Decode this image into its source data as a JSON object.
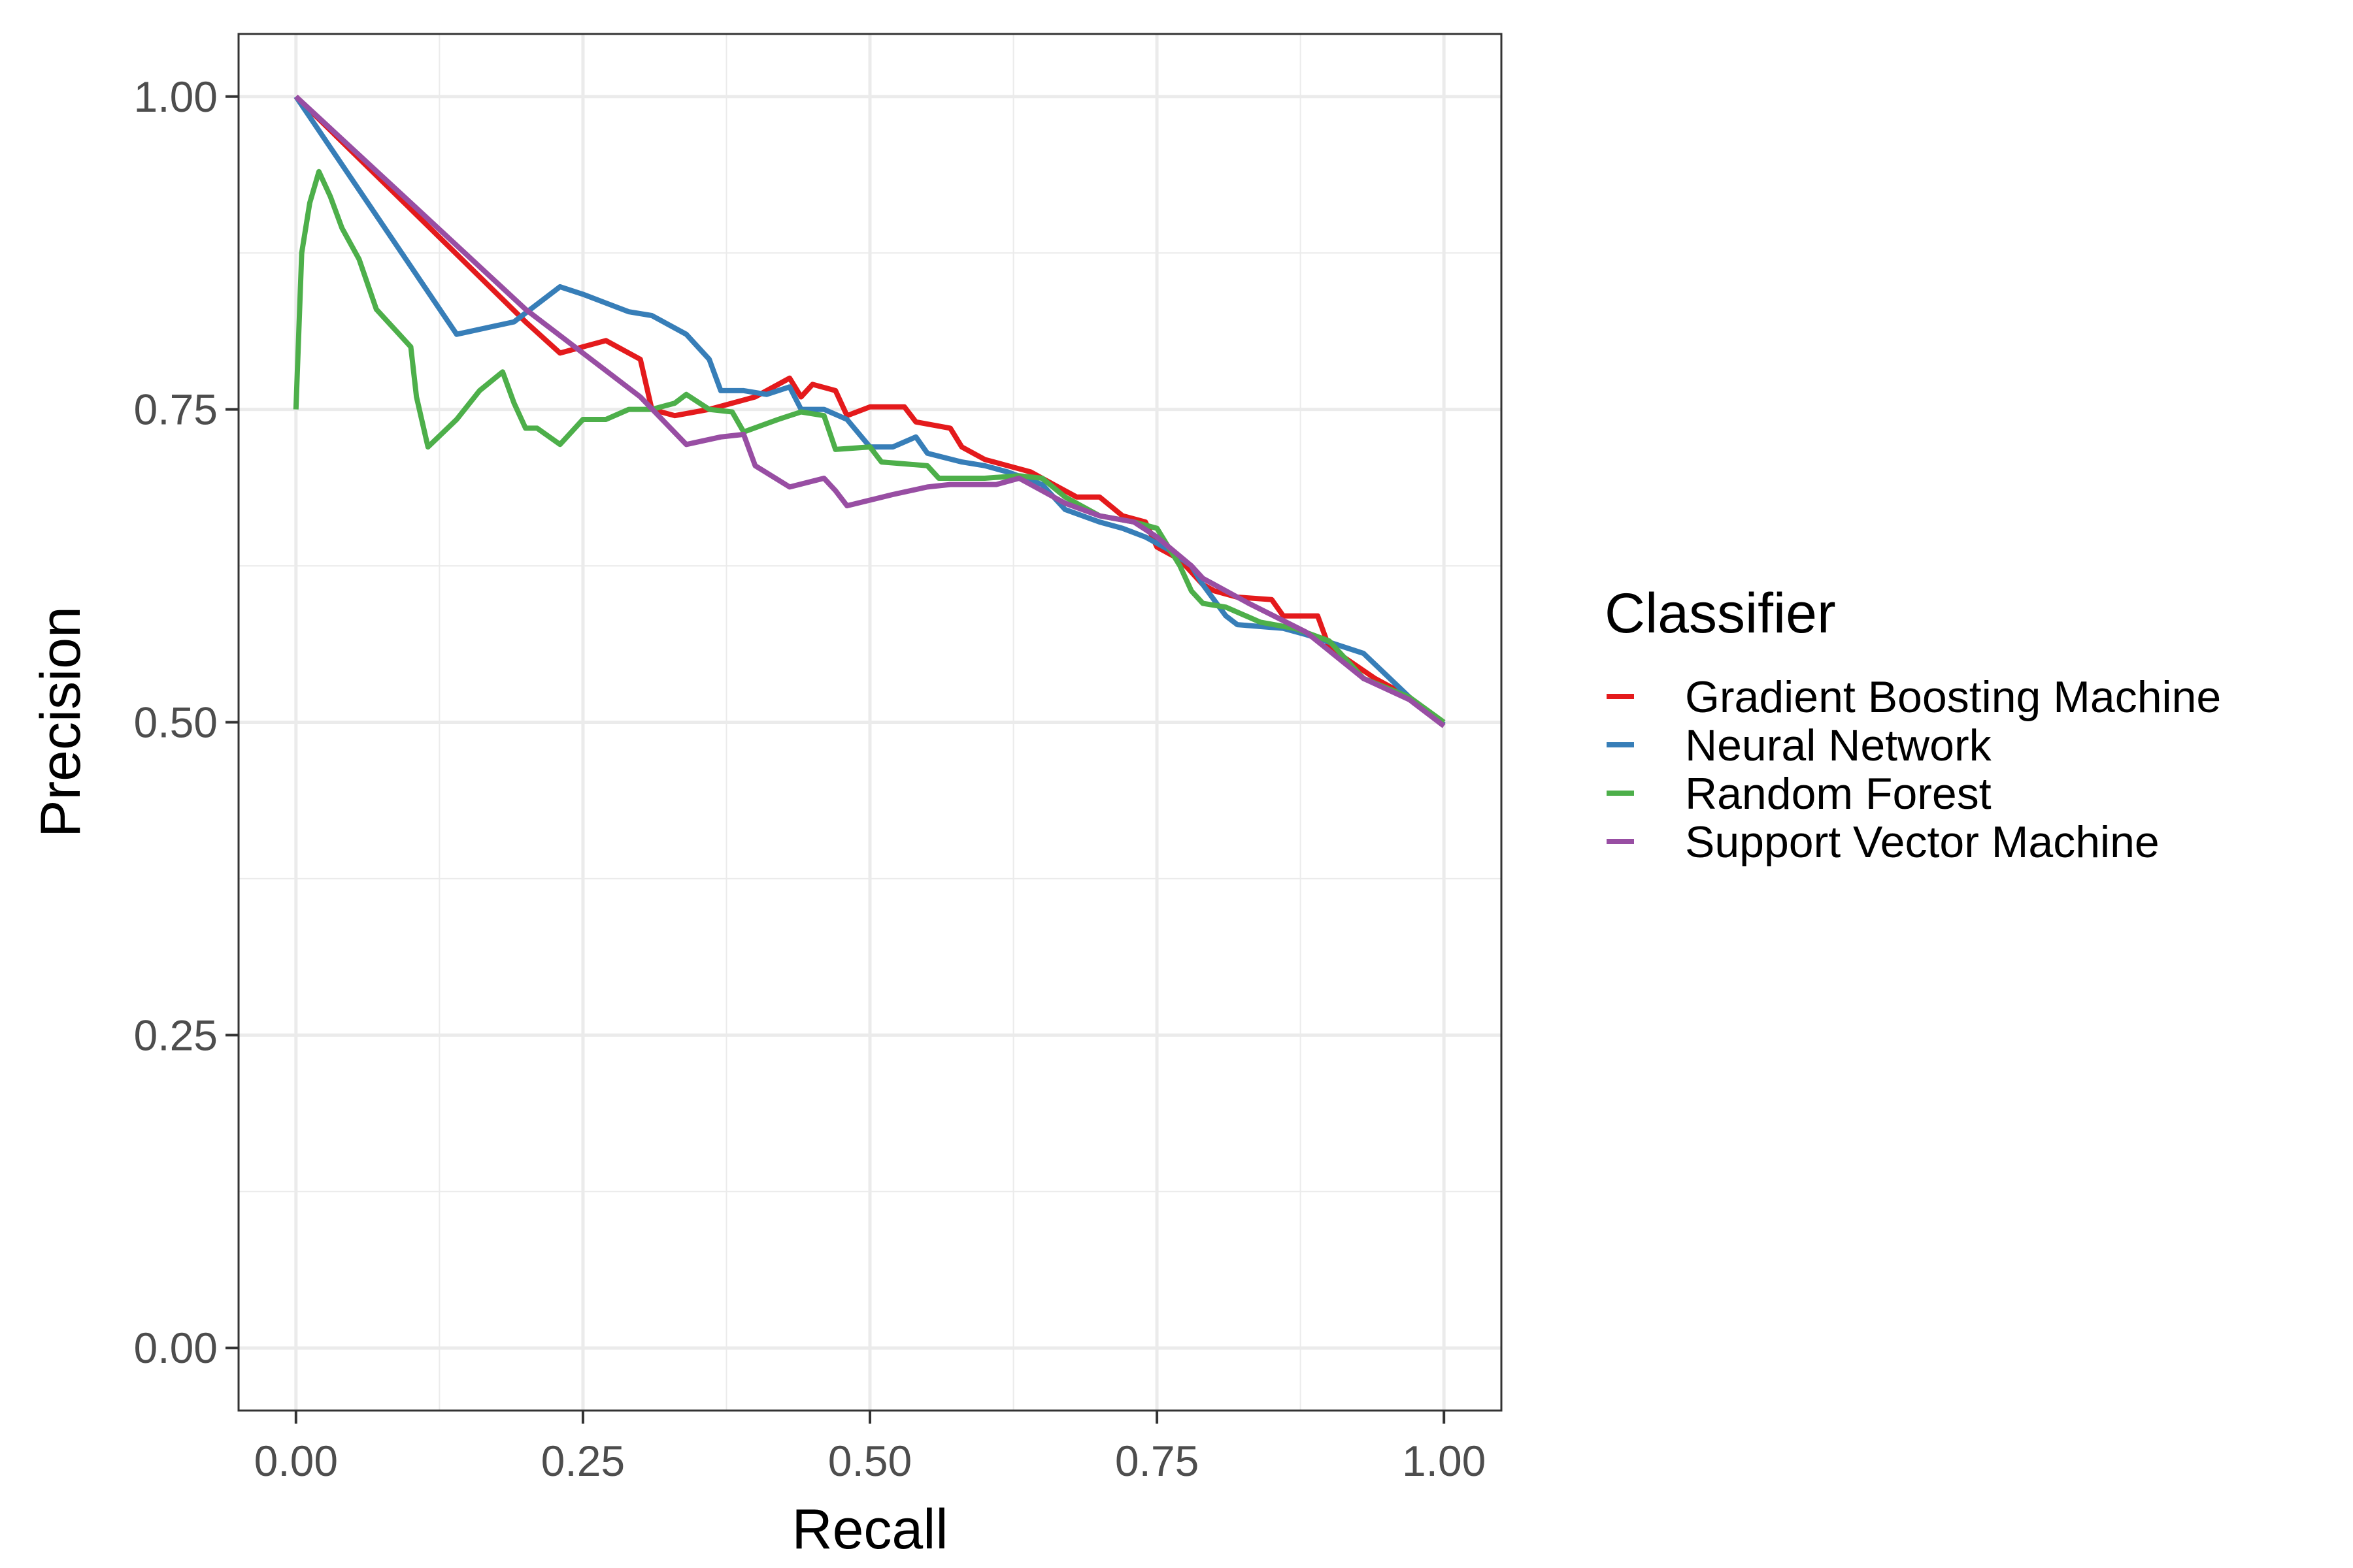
{
  "chart_data": {
    "type": "line",
    "title": "",
    "xlabel": "Recall",
    "ylabel": "Precision",
    "xlim": [
      -0.05,
      1.05
    ],
    "ylim": [
      -0.05,
      1.05
    ],
    "x_ticks": [
      0.0,
      0.25,
      0.5,
      0.75,
      1.0
    ],
    "x_tick_labels": [
      "0.00",
      "0.25",
      "0.50",
      "0.75",
      "1.00"
    ],
    "y_ticks": [
      0.0,
      0.25,
      0.5,
      0.75,
      1.0
    ],
    "y_tick_labels": [
      "0.00",
      "0.25",
      "0.50",
      "0.75",
      "1.00"
    ],
    "grid": true,
    "legend": {
      "title": "Classifier",
      "placement": "right"
    },
    "series": [
      {
        "name": "Gradient Boosting Machine",
        "color": "#E41A1C",
        "points": [
          [
            0.0,
            1.0
          ],
          [
            0.1,
            0.91
          ],
          [
            0.2,
            0.82
          ],
          [
            0.23,
            0.795
          ],
          [
            0.27,
            0.805
          ],
          [
            0.3,
            0.79
          ],
          [
            0.31,
            0.75
          ],
          [
            0.33,
            0.745
          ],
          [
            0.36,
            0.75
          ],
          [
            0.4,
            0.76
          ],
          [
            0.43,
            0.775
          ],
          [
            0.44,
            0.76
          ],
          [
            0.45,
            0.77
          ],
          [
            0.47,
            0.765
          ],
          [
            0.48,
            0.745
          ],
          [
            0.5,
            0.752
          ],
          [
            0.53,
            0.752
          ],
          [
            0.54,
            0.74
          ],
          [
            0.57,
            0.735
          ],
          [
            0.58,
            0.72
          ],
          [
            0.6,
            0.71
          ],
          [
            0.62,
            0.705
          ],
          [
            0.64,
            0.7
          ],
          [
            0.66,
            0.69
          ],
          [
            0.68,
            0.68
          ],
          [
            0.7,
            0.68
          ],
          [
            0.72,
            0.665
          ],
          [
            0.74,
            0.66
          ],
          [
            0.75,
            0.64
          ],
          [
            0.77,
            0.63
          ],
          [
            0.79,
            0.61
          ],
          [
            0.8,
            0.605
          ],
          [
            0.82,
            0.6
          ],
          [
            0.85,
            0.598
          ],
          [
            0.86,
            0.585
          ],
          [
            0.89,
            0.585
          ],
          [
            0.9,
            0.56
          ],
          [
            0.94,
            0.535
          ],
          [
            0.97,
            0.52
          ],
          [
            1.0,
            0.498
          ]
        ]
      },
      {
        "name": "Neural Network",
        "color": "#377EB8",
        "points": [
          [
            0.0,
            1.0
          ],
          [
            0.14,
            0.81
          ],
          [
            0.19,
            0.82
          ],
          [
            0.23,
            0.848
          ],
          [
            0.25,
            0.842
          ],
          [
            0.27,
            0.835
          ],
          [
            0.29,
            0.828
          ],
          [
            0.31,
            0.825
          ],
          [
            0.34,
            0.81
          ],
          [
            0.36,
            0.79
          ],
          [
            0.37,
            0.765
          ],
          [
            0.39,
            0.765
          ],
          [
            0.41,
            0.762
          ],
          [
            0.43,
            0.768
          ],
          [
            0.44,
            0.75
          ],
          [
            0.46,
            0.75
          ],
          [
            0.48,
            0.742
          ],
          [
            0.5,
            0.72
          ],
          [
            0.52,
            0.72
          ],
          [
            0.54,
            0.728
          ],
          [
            0.55,
            0.715
          ],
          [
            0.58,
            0.708
          ],
          [
            0.6,
            0.705
          ],
          [
            0.62,
            0.7
          ],
          [
            0.65,
            0.69
          ],
          [
            0.67,
            0.67
          ],
          [
            0.7,
            0.66
          ],
          [
            0.72,
            0.655
          ],
          [
            0.74,
            0.648
          ],
          [
            0.76,
            0.638
          ],
          [
            0.78,
            0.625
          ],
          [
            0.79,
            0.61
          ],
          [
            0.81,
            0.585
          ],
          [
            0.82,
            0.578
          ],
          [
            0.86,
            0.575
          ],
          [
            0.88,
            0.57
          ],
          [
            0.93,
            0.555
          ],
          [
            0.97,
            0.52
          ],
          [
            1.0,
            0.498
          ]
        ]
      },
      {
        "name": "Random Forest",
        "color": "#4DAF4A",
        "points": [
          [
            0.0,
            0.75
          ],
          [
            0.005,
            0.875
          ],
          [
            0.012,
            0.915
          ],
          [
            0.02,
            0.94
          ],
          [
            0.03,
            0.92
          ],
          [
            0.04,
            0.895
          ],
          [
            0.055,
            0.87
          ],
          [
            0.07,
            0.83
          ],
          [
            0.1,
            0.8
          ],
          [
            0.105,
            0.76
          ],
          [
            0.115,
            0.72
          ],
          [
            0.14,
            0.742
          ],
          [
            0.16,
            0.765
          ],
          [
            0.18,
            0.78
          ],
          [
            0.19,
            0.755
          ],
          [
            0.2,
            0.735
          ],
          [
            0.21,
            0.735
          ],
          [
            0.23,
            0.722
          ],
          [
            0.25,
            0.742
          ],
          [
            0.27,
            0.742
          ],
          [
            0.29,
            0.75
          ],
          [
            0.31,
            0.75
          ],
          [
            0.33,
            0.755
          ],
          [
            0.34,
            0.762
          ],
          [
            0.36,
            0.75
          ],
          [
            0.38,
            0.748
          ],
          [
            0.39,
            0.732
          ],
          [
            0.42,
            0.742
          ],
          [
            0.44,
            0.748
          ],
          [
            0.46,
            0.745
          ],
          [
            0.47,
            0.718
          ],
          [
            0.5,
            0.72
          ],
          [
            0.51,
            0.708
          ],
          [
            0.55,
            0.705
          ],
          [
            0.56,
            0.695
          ],
          [
            0.6,
            0.695
          ],
          [
            0.63,
            0.697
          ],
          [
            0.65,
            0.695
          ],
          [
            0.67,
            0.68
          ],
          [
            0.7,
            0.665
          ],
          [
            0.73,
            0.66
          ],
          [
            0.75,
            0.655
          ],
          [
            0.77,
            0.625
          ],
          [
            0.78,
            0.605
          ],
          [
            0.79,
            0.595
          ],
          [
            0.81,
            0.592
          ],
          [
            0.84,
            0.58
          ],
          [
            0.87,
            0.575
          ],
          [
            0.9,
            0.565
          ],
          [
            0.93,
            0.535
          ],
          [
            0.97,
            0.52
          ],
          [
            1.0,
            0.5
          ]
        ]
      },
      {
        "name": "Support Vector Machine",
        "color": "#984EA3",
        "points": [
          [
            0.0,
            1.0
          ],
          [
            0.1,
            0.915
          ],
          [
            0.2,
            0.83
          ],
          [
            0.3,
            0.76
          ],
          [
            0.34,
            0.722
          ],
          [
            0.37,
            0.728
          ],
          [
            0.39,
            0.73
          ],
          [
            0.4,
            0.705
          ],
          [
            0.43,
            0.688
          ],
          [
            0.46,
            0.695
          ],
          [
            0.47,
            0.685
          ],
          [
            0.48,
            0.673
          ],
          [
            0.52,
            0.682
          ],
          [
            0.55,
            0.688
          ],
          [
            0.57,
            0.69
          ],
          [
            0.61,
            0.69
          ],
          [
            0.63,
            0.695
          ],
          [
            0.65,
            0.685
          ],
          [
            0.67,
            0.675
          ],
          [
            0.7,
            0.665
          ],
          [
            0.73,
            0.66
          ],
          [
            0.75,
            0.648
          ],
          [
            0.78,
            0.625
          ],
          [
            0.79,
            0.615
          ],
          [
            0.83,
            0.595
          ],
          [
            0.88,
            0.572
          ],
          [
            0.93,
            0.535
          ],
          [
            0.97,
            0.518
          ],
          [
            1.0,
            0.497
          ]
        ]
      }
    ]
  }
}
